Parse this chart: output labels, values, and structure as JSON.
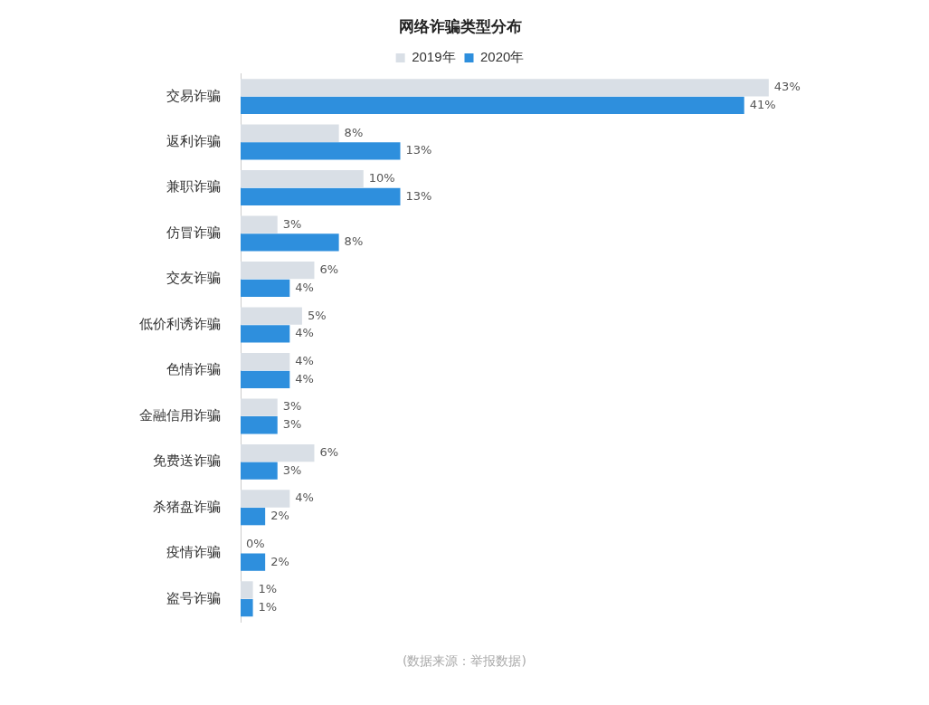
{
  "chart_data": {
    "type": "bar",
    "orientation": "horizontal",
    "title": "网络诈骗类型分布",
    "categories": [
      "交易诈骗",
      "返利诈骗",
      "兼职诈骗",
      "仿冒诈骗",
      "交友诈骗",
      "低价利诱诈骗",
      "色情诈骗",
      "金融信用诈骗",
      "免费送诈骗",
      "杀猪盘诈骗",
      "疫情诈骗",
      "盗号诈骗"
    ],
    "series": [
      {
        "name": "2019年",
        "color": "#d9dfe6",
        "values": [
          43,
          8,
          10,
          3,
          6,
          5,
          4,
          3,
          6,
          4,
          0,
          1
        ],
        "value_labels": [
          "43%",
          "8%",
          "10%",
          "3%",
          "6%",
          "5%",
          "4%",
          "3%",
          "6%",
          "4%",
          "0%",
          "1%"
        ]
      },
      {
        "name": "2020年",
        "color": "#2e8fdd",
        "values": [
          41,
          13,
          13,
          8,
          4,
          4,
          4,
          3,
          3,
          2,
          2,
          1
        ],
        "value_labels": [
          "41%",
          "13%",
          "13%",
          "8%",
          "4%",
          "4%",
          "4%",
          "3%",
          "3%",
          "2%",
          "2%",
          "1%"
        ]
      }
    ],
    "legend": "top",
    "annotations": [
      "(数据来源：举报数据)"
    ]
  }
}
